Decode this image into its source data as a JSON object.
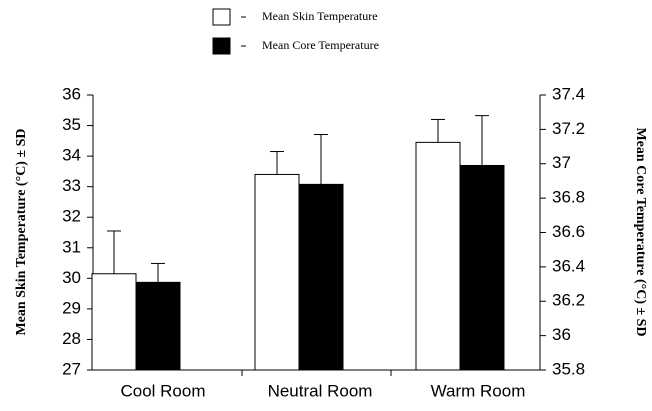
{
  "chart_data": {
    "type": "bar",
    "categories": [
      "Cool Room",
      "Neutral Room",
      "Warm Room"
    ],
    "ylabel": "Mean Skin Temperature (°C) ± SD",
    "y2label": "Mean Core Temperature (°C) ± SD",
    "ylim": [
      27,
      36
    ],
    "yticks": [
      27,
      28,
      29,
      30,
      31,
      32,
      33,
      34,
      35,
      36
    ],
    "y2lim": [
      35.8,
      37.4
    ],
    "y2ticks": [
      35.8,
      36,
      36.2,
      36.4,
      36.6,
      36.8,
      37,
      37.2,
      37.4
    ],
    "series": [
      {
        "name": "Mean Skin Temperature",
        "color": "#ffffff",
        "values": [
          30.15,
          33.4,
          34.45
        ],
        "errors": [
          1.4,
          0.75,
          0.75
        ]
      },
      {
        "name": "Mean Core Temperature",
        "color": "#000000",
        "axis": "y2",
        "values": [
          36.31,
          36.88,
          36.99
        ],
        "errors": [
          0.11,
          0.29,
          0.29
        ]
      }
    ]
  }
}
